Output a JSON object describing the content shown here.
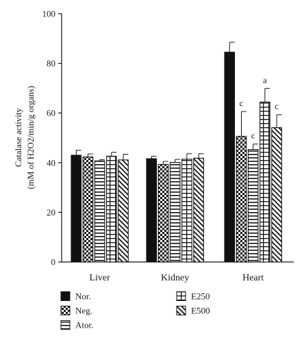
{
  "chart_data": {
    "type": "bar",
    "ylabel_line1": "Catalase activity",
    "ylabel_line2": "(mM of H2O2/min/g organs)",
    "ylim": [
      0,
      100
    ],
    "yticks": [
      0,
      20,
      40,
      60,
      80,
      100
    ],
    "categories": [
      "Liver",
      "Kidney",
      "Heart"
    ],
    "series": [
      {
        "name": "Nor.",
        "pattern": "solid",
        "values": [
          43.0,
          41.6,
          84.5
        ],
        "errors": [
          2.0,
          1.0,
          4.0
        ],
        "sig": [
          "",
          "",
          ""
        ]
      },
      {
        "name": "Neg.",
        "pattern": "checker",
        "values": [
          42.3,
          39.3,
          50.6
        ],
        "errors": [
          1.2,
          1.2,
          10.0
        ],
        "sig": [
          "",
          "",
          "c"
        ]
      },
      {
        "name": "Ator.",
        "pattern": "hlines",
        "values": [
          40.7,
          40.1,
          45.3
        ],
        "errors": [
          0.5,
          1.2,
          2.2
        ],
        "sig": [
          "",
          "",
          "c"
        ]
      },
      {
        "name": "E250",
        "pattern": "boxes",
        "values": [
          42.6,
          41.4,
          64.4
        ],
        "errors": [
          1.6,
          2.2,
          5.5
        ],
        "sig": [
          "",
          "",
          "a"
        ]
      },
      {
        "name": "E500",
        "pattern": "diagonal",
        "values": [
          41.1,
          41.8,
          54.1
        ],
        "errors": [
          2.3,
          1.8,
          5.2
        ],
        "sig": [
          "",
          "",
          "c"
        ]
      }
    ],
    "legend": {
      "position": "bottom",
      "col1": [
        "Nor.",
        "Neg.",
        "Ator."
      ],
      "col2": [
        "E250",
        "E500"
      ]
    },
    "grid": false
  }
}
